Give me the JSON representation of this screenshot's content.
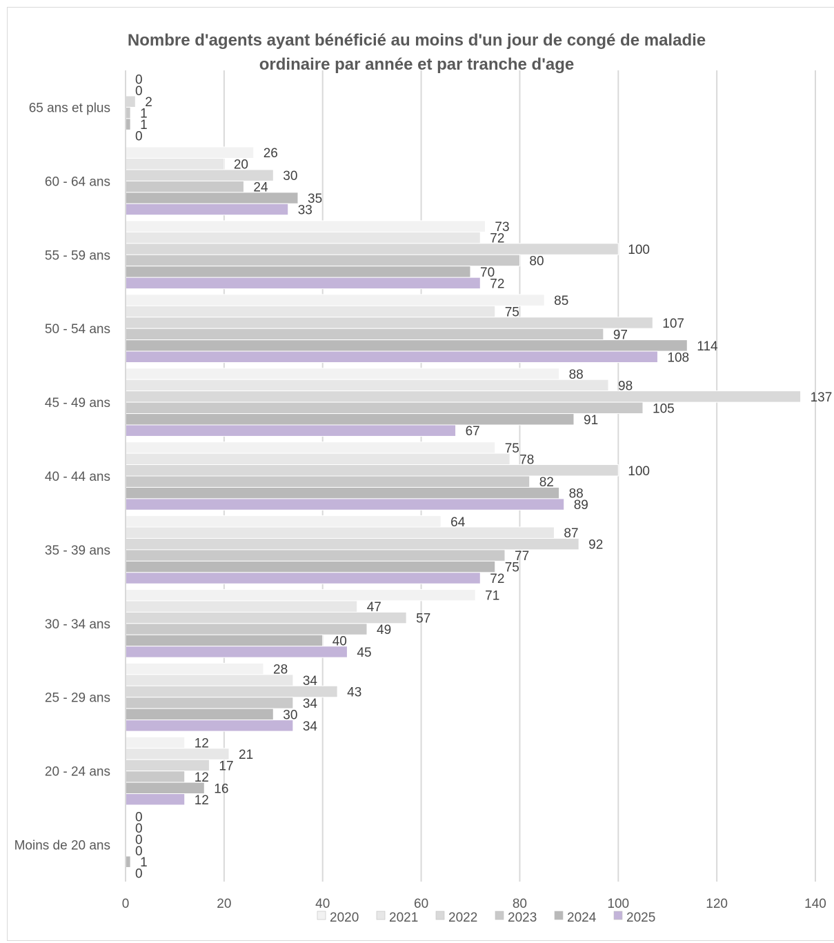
{
  "chart_data": {
    "type": "bar",
    "orientation": "horizontal",
    "title_lines": [
      "Nombre d'agents ayant bénéficié au moins d'un jour de congé de maladie",
      "ordinaire par année et par tranche d'age"
    ],
    "categories": [
      "65 ans et plus",
      "60 - 64 ans",
      "55 - 59 ans",
      "50 - 54 ans",
      "45 - 49 ans",
      "40 - 44 ans",
      "35 - 39 ans",
      "30 - 34 ans",
      "25 - 29 ans",
      "20 - 24 ans",
      "Moins de 20 ans"
    ],
    "series": [
      {
        "name": "2020",
        "color": "#f2f2f2",
        "values": [
          0,
          26,
          73,
          85,
          88,
          75,
          64,
          71,
          28,
          12,
          0
        ]
      },
      {
        "name": "2021",
        "color": "#e7e7e7",
        "values": [
          0,
          20,
          72,
          75,
          98,
          78,
          87,
          47,
          34,
          21,
          0
        ]
      },
      {
        "name": "2022",
        "color": "#d9d9d9",
        "values": [
          2,
          30,
          100,
          107,
          137,
          100,
          92,
          57,
          43,
          17,
          0
        ]
      },
      {
        "name": "2023",
        "color": "#c9c9c9",
        "values": [
          1,
          24,
          80,
          97,
          105,
          82,
          77,
          49,
          34,
          12,
          0
        ]
      },
      {
        "name": "2024",
        "color": "#b9b9b9",
        "values": [
          1,
          35,
          70,
          114,
          91,
          88,
          75,
          40,
          30,
          16,
          1
        ]
      },
      {
        "name": "2025",
        "color": "#c3b4d9",
        "values": [
          0,
          33,
          72,
          108,
          67,
          89,
          72,
          45,
          34,
          12,
          0
        ]
      }
    ],
    "xlim": [
      0,
      140
    ],
    "x_ticks": [
      0,
      20,
      40,
      60,
      80,
      100,
      120,
      140
    ],
    "grid": true,
    "data_labels": true,
    "legend_position": "bottom"
  }
}
